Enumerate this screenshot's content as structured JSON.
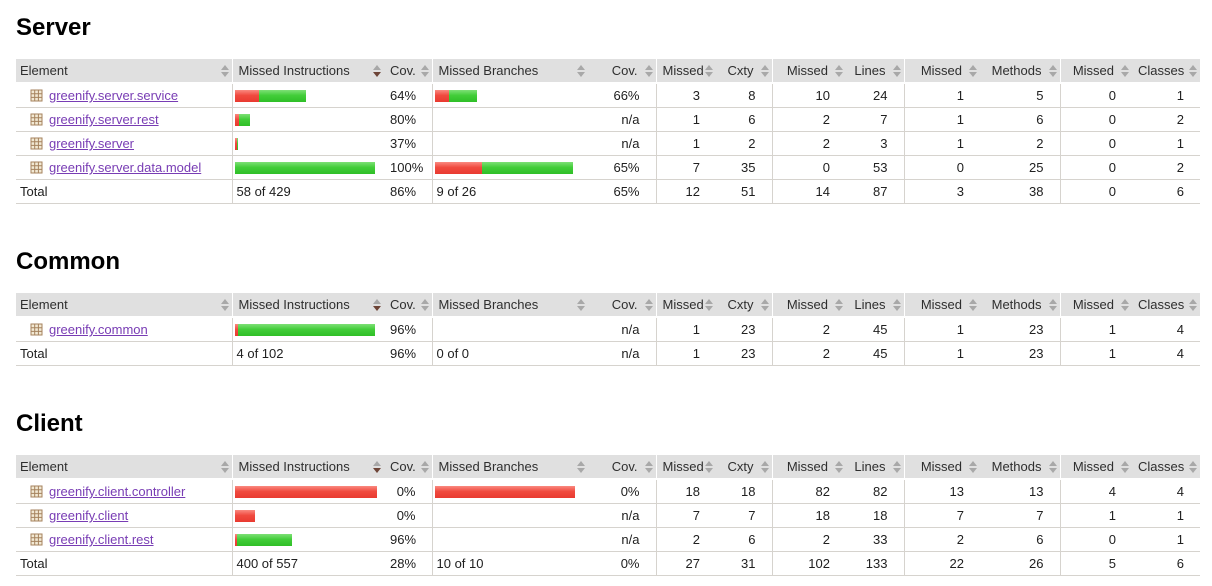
{
  "report": {
    "columns": [
      {
        "id": "element",
        "key": "element",
        "label": "Element",
        "align": "left",
        "sorted": "none"
      },
      {
        "id": "missed-instructions",
        "key": "instr_bar",
        "label": "Missed Instructions",
        "align": "left",
        "sorted": "desc"
      },
      {
        "id": "instruction-coverage",
        "key": "instr_cov",
        "label": "Cov.",
        "align": "right",
        "sorted": "none"
      },
      {
        "id": "missed-branches",
        "key": "branch_bar",
        "label": "Missed Branches",
        "align": "left",
        "sorted": "none"
      },
      {
        "id": "branch-coverage",
        "key": "branch_cov",
        "label": "Cov.",
        "align": "right",
        "sorted": "none"
      },
      {
        "id": "missed-cxty",
        "key": "missed_cxty",
        "label": "Missed",
        "align": "right",
        "sorted": "none"
      },
      {
        "id": "cxty",
        "key": "cxty",
        "label": "Cxty",
        "align": "right",
        "sorted": "none"
      },
      {
        "id": "missed-lines",
        "key": "missed_lines",
        "label": "Missed",
        "align": "right",
        "sorted": "none"
      },
      {
        "id": "lines",
        "key": "lines",
        "label": "Lines",
        "align": "right",
        "sorted": "none"
      },
      {
        "id": "missed-methods",
        "key": "missed_methods",
        "label": "Missed",
        "align": "right",
        "sorted": "none"
      },
      {
        "id": "methods",
        "key": "methods",
        "label": "Methods",
        "align": "right",
        "sorted": "none"
      },
      {
        "id": "missed-classes",
        "key": "missed_classes",
        "label": "Missed",
        "align": "right",
        "sorted": "none"
      },
      {
        "id": "classes",
        "key": "classes",
        "label": "Classes",
        "align": "right",
        "sorted": "none"
      }
    ],
    "colors": {
      "bar_red": "#f04a3f",
      "bar_green": "#42cd39",
      "header_bg": "#e0e0e0",
      "link": "#783cb4",
      "row_border": "#d6d3ce",
      "sort_active": "#6d4437"
    },
    "sections": [
      {
        "title": "Server",
        "rows": [
          {
            "element": "greenify.server.service",
            "instr_bar": {
              "red": 24,
              "green": 47
            },
            "instr_cov": "64%",
            "branch_bar": {
              "red": 14,
              "green": 28
            },
            "branch_cov": "66%",
            "missed_cxty": "3",
            "cxty": "8",
            "missed_lines": "10",
            "lines": "24",
            "missed_methods": "1",
            "methods": "5",
            "missed_classes": "0",
            "classes": "1"
          },
          {
            "element": "greenify.server.rest",
            "instr_bar": {
              "red": 4,
              "green": 11
            },
            "instr_cov": "80%",
            "branch_bar": null,
            "branch_cov": "n/a",
            "missed_cxty": "1",
            "cxty": "6",
            "missed_lines": "2",
            "lines": "7",
            "missed_methods": "1",
            "methods": "6",
            "missed_classes": "0",
            "classes": "2"
          },
          {
            "element": "greenify.server",
            "instr_bar": {
              "red": 2,
              "green": 1
            },
            "instr_cov": "37%",
            "branch_bar": null,
            "branch_cov": "n/a",
            "missed_cxty": "1",
            "cxty": "2",
            "missed_lines": "2",
            "lines": "3",
            "missed_methods": "1",
            "methods": "2",
            "missed_classes": "0",
            "classes": "1"
          },
          {
            "element": "greenify.server.data.model",
            "instr_bar": {
              "red": 0,
              "green": 140
            },
            "instr_cov": "100%",
            "branch_bar": {
              "red": 47,
              "green": 91
            },
            "branch_cov": "65%",
            "missed_cxty": "7",
            "cxty": "35",
            "missed_lines": "0",
            "lines": "53",
            "missed_methods": "0",
            "methods": "25",
            "missed_classes": "0",
            "classes": "2"
          }
        ],
        "total": {
          "element": "Total",
          "instr_bar": "58 of 429",
          "instr_cov": "86%",
          "branch_bar": "9 of 26",
          "branch_cov": "65%",
          "missed_cxty": "12",
          "cxty": "51",
          "missed_lines": "14",
          "lines": "87",
          "missed_methods": "3",
          "methods": "38",
          "missed_classes": "0",
          "classes": "6"
        }
      },
      {
        "title": "Common",
        "rows": [
          {
            "element": "greenify.common",
            "instr_bar": {
              "red": 3,
              "green": 137
            },
            "instr_cov": "96%",
            "branch_bar": null,
            "branch_cov": "n/a",
            "missed_cxty": "1",
            "cxty": "23",
            "missed_lines": "2",
            "lines": "45",
            "missed_methods": "1",
            "methods": "23",
            "missed_classes": "1",
            "classes": "4"
          }
        ],
        "total": {
          "element": "Total",
          "instr_bar": "4 of 102",
          "instr_cov": "96%",
          "branch_bar": "0 of 0",
          "branch_cov": "n/a",
          "missed_cxty": "1",
          "cxty": "23",
          "missed_lines": "2",
          "lines": "45",
          "missed_methods": "1",
          "methods": "23",
          "missed_classes": "1",
          "classes": "4"
        }
      },
      {
        "title": "Client",
        "rows": [
          {
            "element": "greenify.client.controller",
            "instr_bar": {
              "red": 142,
              "green": 0
            },
            "instr_cov": "0%",
            "branch_bar": {
              "red": 140,
              "green": 0
            },
            "branch_cov": "0%",
            "missed_cxty": "18",
            "cxty": "18",
            "missed_lines": "82",
            "lines": "82",
            "missed_methods": "13",
            "methods": "13",
            "missed_classes": "4",
            "classes": "4"
          },
          {
            "element": "greenify.client",
            "instr_bar": {
              "red": 20,
              "green": 0
            },
            "instr_cov": "0%",
            "branch_bar": null,
            "branch_cov": "n/a",
            "missed_cxty": "7",
            "cxty": "7",
            "missed_lines": "18",
            "lines": "18",
            "missed_methods": "7",
            "methods": "7",
            "missed_classes": "1",
            "classes": "1"
          },
          {
            "element": "greenify.client.rest",
            "instr_bar": {
              "red": 2,
              "green": 55
            },
            "instr_cov": "96%",
            "branch_bar": null,
            "branch_cov": "n/a",
            "missed_cxty": "2",
            "cxty": "6",
            "missed_lines": "2",
            "lines": "33",
            "missed_methods": "2",
            "methods": "6",
            "missed_classes": "0",
            "classes": "1"
          }
        ],
        "total": {
          "element": "Total",
          "instr_bar": "400 of 557",
          "instr_cov": "28%",
          "branch_bar": "10 of 10",
          "branch_cov": "0%",
          "missed_cxty": "27",
          "cxty": "31",
          "missed_lines": "102",
          "lines": "133",
          "missed_methods": "22",
          "methods": "26",
          "missed_classes": "5",
          "classes": "6"
        }
      }
    ]
  }
}
